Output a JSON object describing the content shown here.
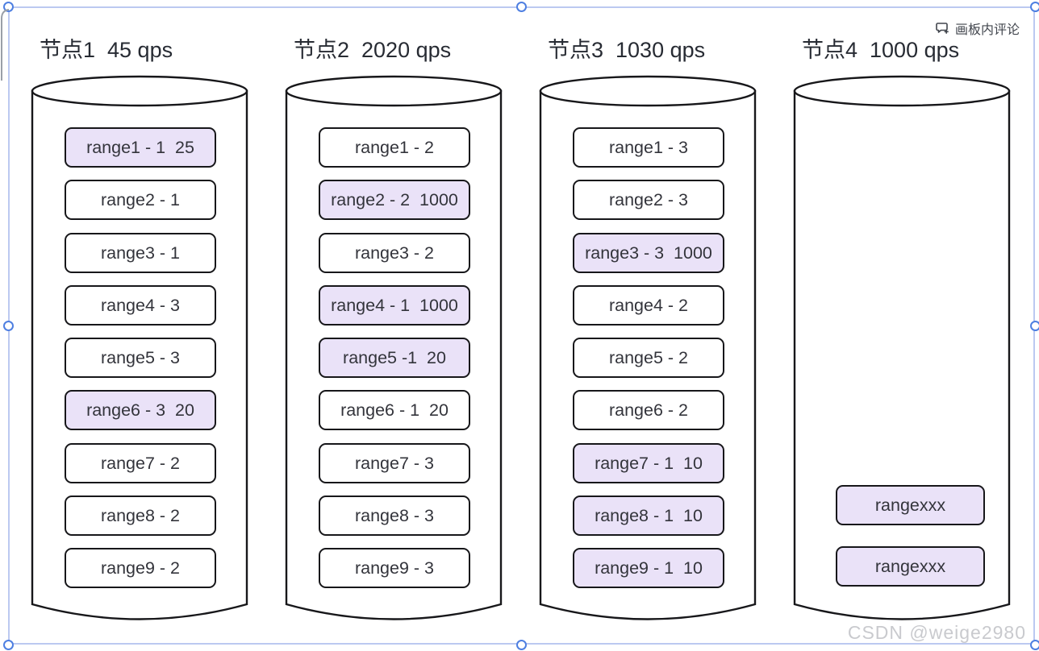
{
  "artboard": {
    "comment_button_label": "画板内评论",
    "watermark": "CSDN @weige2980"
  },
  "colors": {
    "highlight_fill": "#EAE2F8",
    "plain_fill": "#FFFFFF",
    "shape_stroke": "#17171A",
    "selection_border": "#BCC9F1",
    "handle_stroke": "#4E7FE1",
    "title_text": "#272B33",
    "box_text": "#33343B",
    "comment_text": "#41454D",
    "watermark_text": "#C9CACE"
  },
  "nodes": [
    {
      "title": "节点1  45 qps",
      "ranges": [
        {
          "label": "range1 - 1  25",
          "highlight": true
        },
        {
          "label": "range2 - 1",
          "highlight": false
        },
        {
          "label": "range3 - 1",
          "highlight": false
        },
        {
          "label": "range4 - 3",
          "highlight": false
        },
        {
          "label": "range5 - 3",
          "highlight": false
        },
        {
          "label": "range6 - 3  20",
          "highlight": true
        },
        {
          "label": "range7 - 2",
          "highlight": false
        },
        {
          "label": "range8 - 2",
          "highlight": false
        },
        {
          "label": "range9 - 2",
          "highlight": false
        }
      ]
    },
    {
      "title": "节点2  2020 qps",
      "ranges": [
        {
          "label": "range1 - 2",
          "highlight": false
        },
        {
          "label": "range2 - 2  1000",
          "highlight": true
        },
        {
          "label": "range3 - 2",
          "highlight": false
        },
        {
          "label": "range4 - 1  1000",
          "highlight": true
        },
        {
          "label": "range5 -1  20",
          "highlight": true
        },
        {
          "label": "range6 - 1  20",
          "highlight": false
        },
        {
          "label": "range7 - 3",
          "highlight": false
        },
        {
          "label": "range8 - 3",
          "highlight": false
        },
        {
          "label": "range9 - 3",
          "highlight": false
        }
      ]
    },
    {
      "title": "节点3  1030 qps",
      "ranges": [
        {
          "label": "range1 - 3",
          "highlight": false
        },
        {
          "label": "range2 - 3",
          "highlight": false
        },
        {
          "label": "range3 - 3  1000",
          "highlight": true
        },
        {
          "label": "range4 - 2",
          "highlight": false
        },
        {
          "label": "range5 - 2",
          "highlight": false
        },
        {
          "label": "range6 - 2",
          "highlight": false
        },
        {
          "label": "range7 - 1  10",
          "highlight": true
        },
        {
          "label": "range8 - 1  10",
          "highlight": true
        },
        {
          "label": "range9 - 1  10",
          "highlight": true
        }
      ]
    },
    {
      "title": "节点4  1000 qps",
      "ranges": [
        {
          "label": "rangexxx",
          "highlight": true
        },
        {
          "label": "rangexxx",
          "highlight": true
        }
      ]
    }
  ]
}
